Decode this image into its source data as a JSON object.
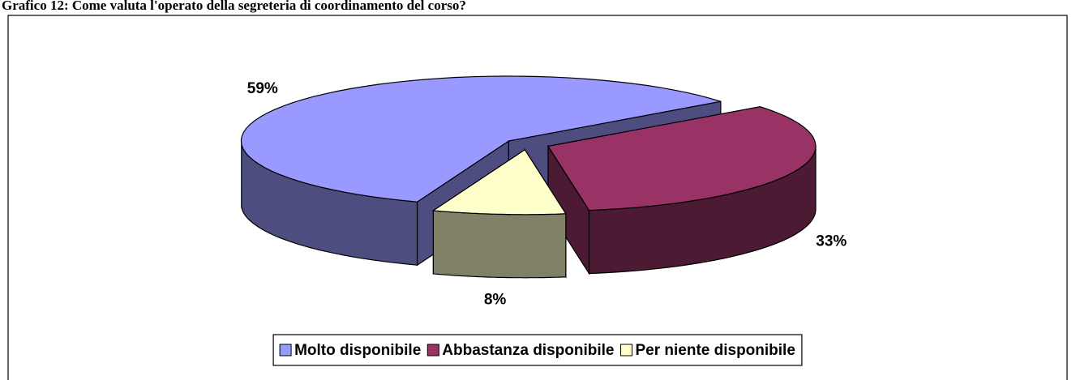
{
  "chart_data": {
    "type": "pie",
    "title": "Grafico 12: Come valuta l'operato della segreteria di coordinamento del corso?",
    "categories": [
      "Molto disponibile",
      "Abbastanza disponibile",
      "Per niente disponibile"
    ],
    "values": [
      59,
      33,
      8
    ],
    "value_labels": [
      "59%",
      "33%",
      "8%"
    ],
    "colors": [
      "#9999ff",
      "#993366",
      "#ffffcc"
    ],
    "legend": "bottom"
  }
}
